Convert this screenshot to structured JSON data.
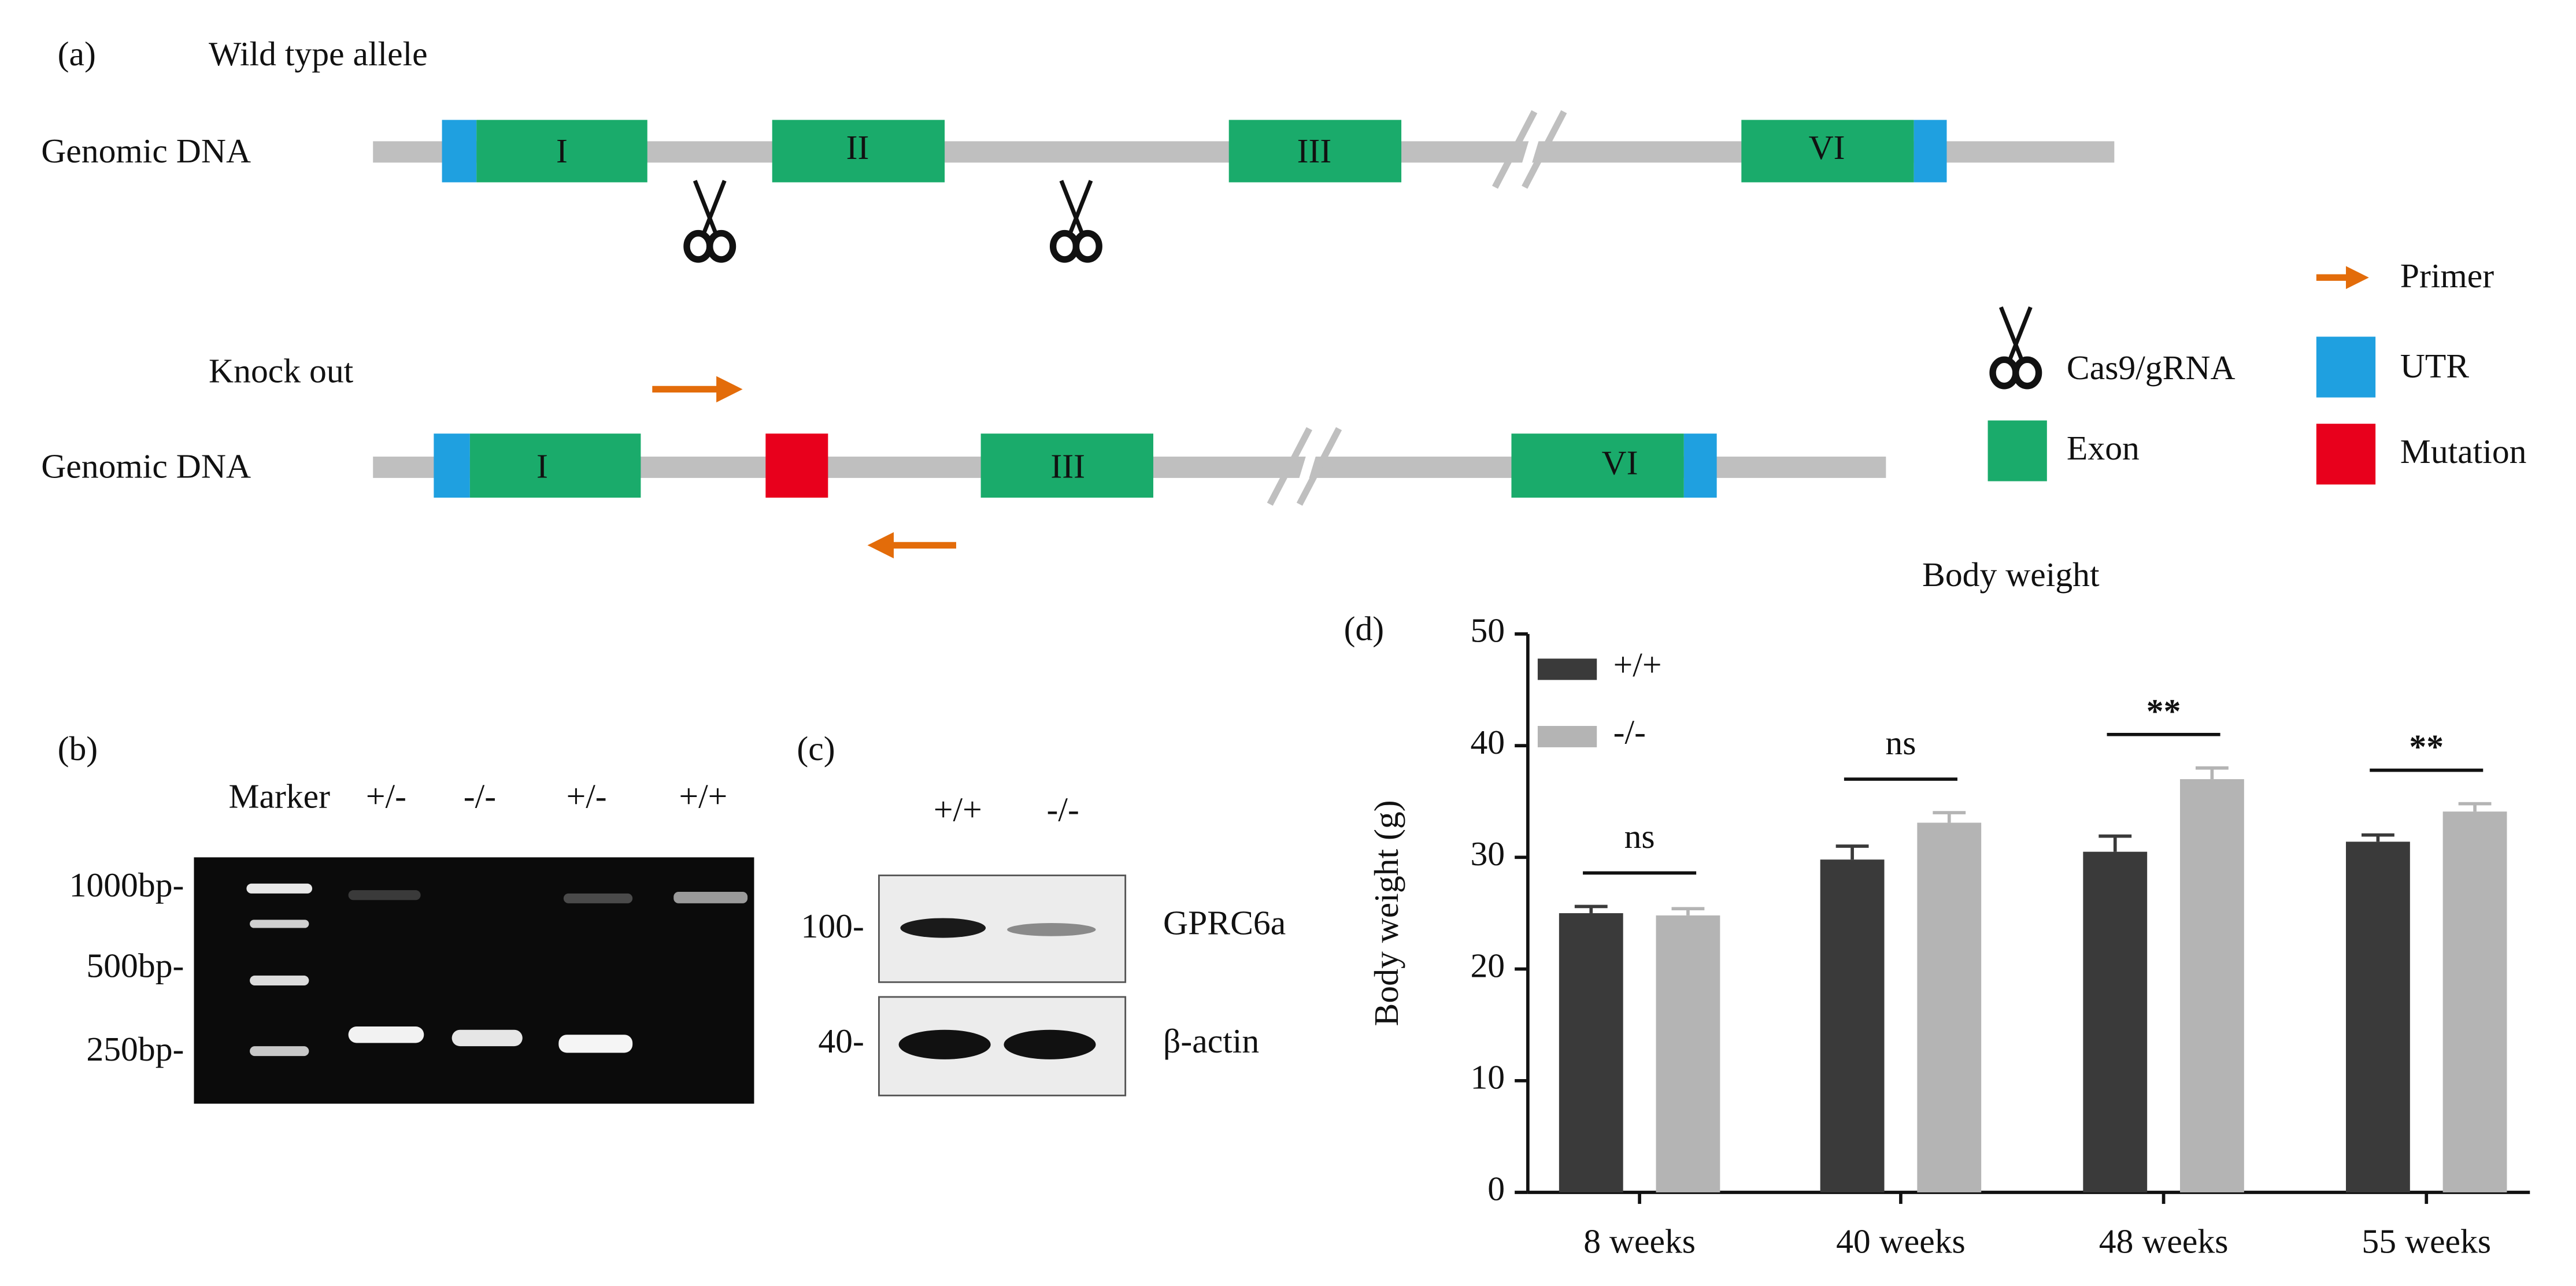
{
  "panel_a": {
    "label": "(a)",
    "wild_type_title": "Wild type allele",
    "knockout_title": "Knock out",
    "row_label_wt": "Genomic DNA",
    "row_label_ko": "Genomic DNA",
    "wt_exons": [
      "I",
      "II",
      "III",
      "VI"
    ],
    "ko_exons": [
      "I",
      "III",
      "VI"
    ],
    "legend": {
      "primer": "Primer",
      "cas9": "Cas9/gRNA",
      "utr": "UTR",
      "exon": "Exon",
      "mutation": "Mutation"
    }
  },
  "panel_b": {
    "label": "(b)",
    "lanes": [
      "Marker",
      "+/-",
      "-/-",
      "+/-",
      "+/+"
    ],
    "size_labels": [
      "1000bp-",
      "500bp-",
      "250bp-"
    ]
  },
  "panel_c": {
    "label": "(c)",
    "lanes": [
      "+/+",
      "-/-"
    ],
    "mw_labels": [
      "100-",
      "40-"
    ],
    "proteins": [
      "GPRC6a",
      "β-actin"
    ]
  },
  "chart_data": {
    "type": "bar",
    "panel_label": "(d)",
    "title": "Body weight",
    "y_label": "Body weight (g)",
    "categories": [
      "8 weeks",
      "40 weeks",
      "48 weeks",
      "55 weeks"
    ],
    "series": [
      {
        "name": "+/+",
        "color": "#3a3a3a",
        "values": [
          25,
          29.8,
          30.5,
          31.4
        ],
        "errors": [
          0.6,
          1.2,
          1.4,
          0.6
        ]
      },
      {
        "name": "-/-",
        "color": "#b4b4b4",
        "values": [
          24.8,
          33.1,
          37,
          34.1
        ],
        "errors": [
          0.6,
          0.9,
          1.0,
          0.7
        ]
      }
    ],
    "annotations": [
      "ns",
      "ns",
      "**",
      "**"
    ],
    "ylim": [
      0,
      50
    ],
    "yticks": [
      0,
      10,
      20,
      30,
      40,
      50
    ],
    "grid": false,
    "legend": "upper left"
  }
}
